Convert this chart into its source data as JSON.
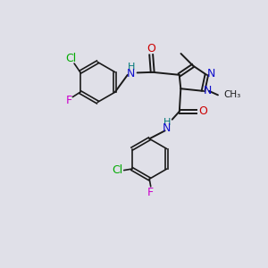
{
  "bg_color": "#e0e0e8",
  "bond_color": "#1a1a1a",
  "atom_colors": {
    "N": "#1010cc",
    "O": "#cc0000",
    "Cl": "#00aa00",
    "F": "#cc00cc",
    "C": "#1a1a1a",
    "H": "#007777"
  },
  "lw": 1.4,
  "fs": 9.0,
  "fs_small": 8.0
}
